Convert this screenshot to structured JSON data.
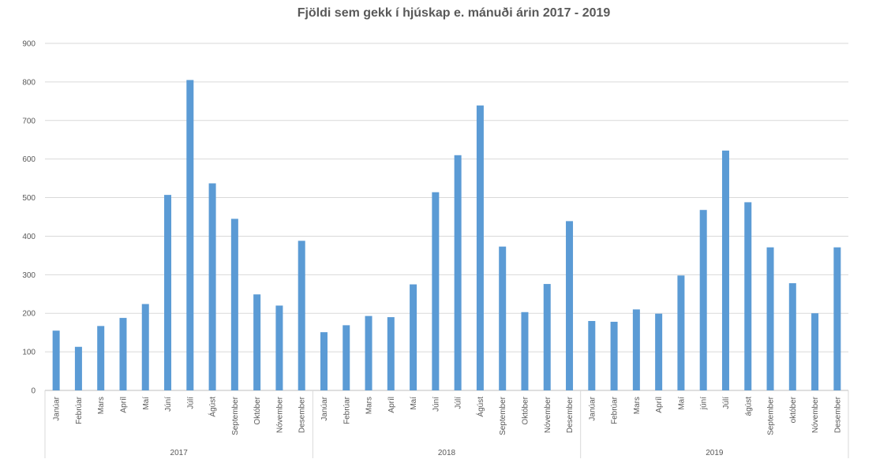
{
  "chart_data": {
    "type": "bar",
    "title": "Fjöldi sem gekk í hjúskap e. mánuði árin 2017 - 2019",
    "xlabel": "",
    "ylabel": "",
    "ylim": [
      0,
      900
    ],
    "yticks": [
      0,
      100,
      200,
      300,
      400,
      500,
      600,
      700,
      800,
      900
    ],
    "grid": true,
    "bar_color": "#5b9bd5",
    "groups": [
      {
        "year": "2017",
        "categories": [
          "Janúar",
          "Febrúar",
          "Mars",
          "Apríl",
          "Maí",
          "Júní",
          "Júlí",
          "Ágúst",
          "September",
          "Október",
          "Nóvember",
          "Desember"
        ],
        "values": [
          155,
          113,
          167,
          188,
          224,
          507,
          805,
          537,
          445,
          249,
          220,
          388
        ]
      },
      {
        "year": "2018",
        "categories": [
          "Janúar",
          "Febrúar",
          "Mars",
          "Apríl",
          "Maí",
          "Júní",
          "Júlí",
          "Ágúst",
          "September",
          "Október",
          "Nóvember",
          "Desember"
        ],
        "values": [
          151,
          169,
          193,
          190,
          275,
          514,
          610,
          739,
          373,
          203,
          276,
          439
        ]
      },
      {
        "year": "2019",
        "categories": [
          "Janúar",
          "Febrúar",
          "Mars",
          "Apríl",
          "Maí",
          "júní",
          "Júlí",
          "ágúst",
          "September",
          "október",
          "Nóvember",
          "Desember"
        ],
        "values": [
          180,
          178,
          210,
          199,
          298,
          468,
          622,
          488,
          371,
          278,
          200,
          371
        ]
      }
    ]
  }
}
